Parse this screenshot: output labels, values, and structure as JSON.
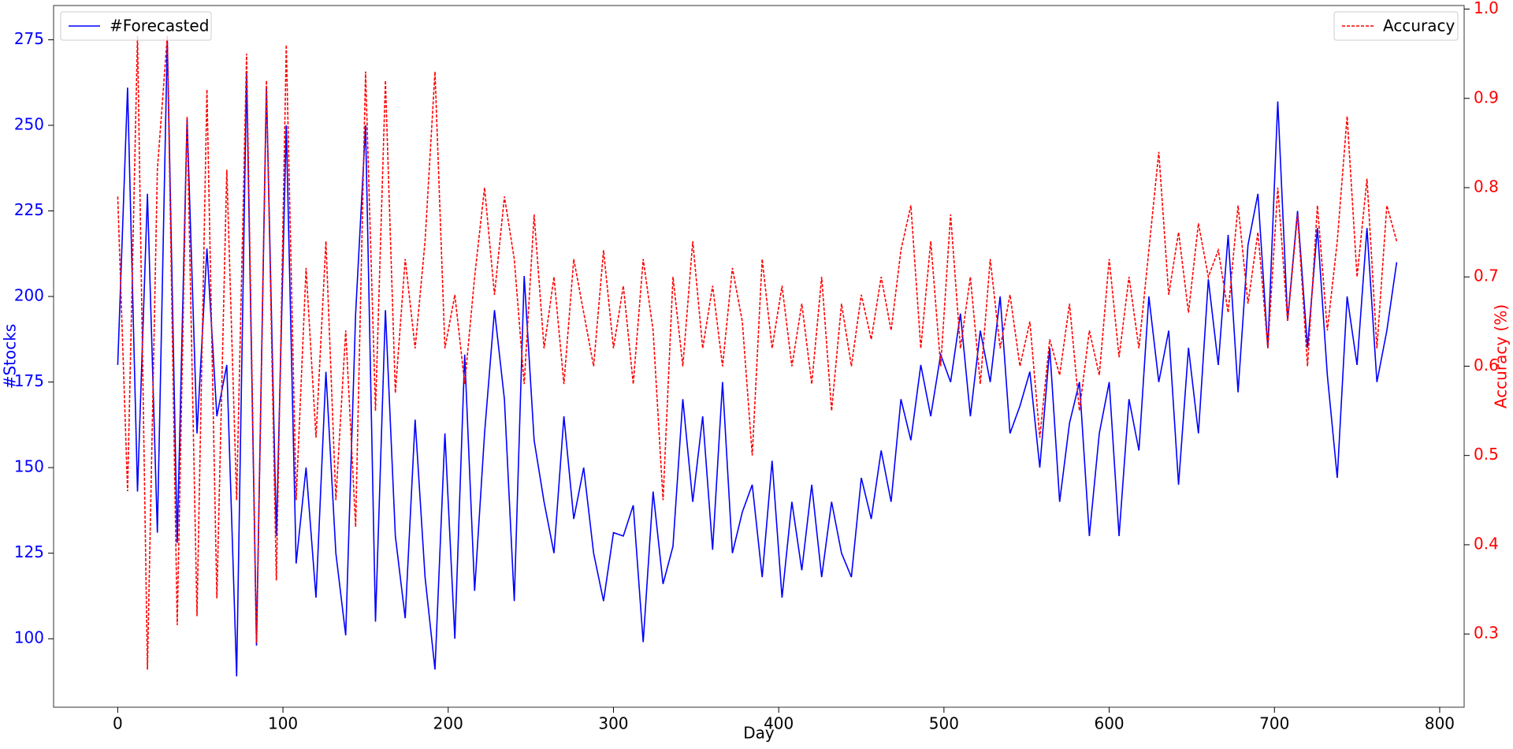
{
  "chart_data": {
    "type": "line",
    "xlabel": "Day",
    "ylabel": "#Stocks",
    "y2label": "Accuracy (%)",
    "x": [
      0,
      6,
      12,
      18,
      24,
      30,
      36,
      42,
      48,
      54,
      60,
      66,
      72,
      78,
      84,
      90,
      96,
      102,
      108,
      114,
      120,
      126,
      132,
      138,
      144,
      150,
      156,
      162,
      168,
      174,
      180,
      186,
      192,
      198,
      204,
      210,
      216,
      222,
      228,
      234,
      240,
      246,
      252,
      258,
      264,
      270,
      276,
      282,
      288,
      294,
      300,
      306,
      312,
      318,
      324,
      330,
      336,
      342,
      348,
      354,
      360,
      366,
      372,
      378,
      384,
      390,
      396,
      402,
      408,
      414,
      420,
      426,
      432,
      438,
      444,
      450,
      456,
      462,
      468,
      474,
      480,
      486,
      492,
      498,
      504,
      510,
      516,
      522,
      528,
      534,
      540,
      546,
      552,
      558,
      564,
      570,
      576,
      582,
      588,
      594,
      600,
      606,
      612,
      618,
      624,
      630,
      636,
      642,
      648,
      654,
      660,
      666,
      672,
      678,
      684,
      690,
      696,
      702,
      708,
      714,
      720,
      726,
      732,
      738,
      744,
      750,
      756,
      762,
      768,
      774
    ],
    "series": [
      {
        "name": "#Forecasted",
        "color": "#0000ff",
        "axis": "y",
        "dashed": false,
        "values": [
          180,
          261,
          143,
          230,
          131,
          275,
          128,
          252,
          160,
          214,
          165,
          180,
          89,
          265,
          98,
          261,
          130,
          250,
          122,
          150,
          112,
          178,
          125,
          101,
          195,
          250,
          105,
          196,
          130,
          106,
          164,
          118,
          91,
          160,
          100,
          183,
          114,
          160,
          196,
          170,
          111,
          206,
          158,
          140,
          125,
          165,
          135,
          150,
          125,
          111,
          131,
          130,
          139,
          99,
          143,
          116,
          127,
          170,
          140,
          165,
          126,
          175,
          125,
          137,
          145,
          118,
          152,
          112,
          140,
          120,
          145,
          118,
          140,
          125,
          118,
          147,
          135,
          155,
          140,
          170,
          158,
          180,
          165,
          183,
          175,
          195,
          165,
          190,
          175,
          200,
          160,
          168,
          178,
          150,
          185,
          140,
          163,
          175,
          130,
          160,
          175,
          130,
          170,
          155,
          200,
          175,
          190,
          145,
          185,
          160,
          205,
          180,
          218,
          172,
          215,
          230,
          185,
          257,
          193,
          225,
          185,
          220,
          177,
          147,
          200,
          180,
          220,
          175,
          190,
          210
        ]
      },
      {
        "name": "Accuracy",
        "color": "#ff0000",
        "axis": "y2",
        "dashed": true,
        "values": [
          0.79,
          0.46,
          0.97,
          0.26,
          0.82,
          0.97,
          0.31,
          0.88,
          0.32,
          0.91,
          0.34,
          0.82,
          0.45,
          0.95,
          0.29,
          0.92,
          0.36,
          0.96,
          0.45,
          0.71,
          0.52,
          0.74,
          0.45,
          0.64,
          0.42,
          0.93,
          0.55,
          0.92,
          0.57,
          0.72,
          0.62,
          0.74,
          0.93,
          0.62,
          0.68,
          0.58,
          0.7,
          0.8,
          0.68,
          0.79,
          0.72,
          0.58,
          0.77,
          0.62,
          0.7,
          0.58,
          0.72,
          0.66,
          0.6,
          0.73,
          0.62,
          0.69,
          0.58,
          0.72,
          0.64,
          0.45,
          0.7,
          0.6,
          0.74,
          0.62,
          0.69,
          0.6,
          0.71,
          0.65,
          0.5,
          0.72,
          0.62,
          0.69,
          0.6,
          0.67,
          0.58,
          0.7,
          0.55,
          0.67,
          0.6,
          0.68,
          0.63,
          0.7,
          0.64,
          0.73,
          0.78,
          0.62,
          0.74,
          0.6,
          0.77,
          0.62,
          0.7,
          0.58,
          0.72,
          0.62,
          0.68,
          0.6,
          0.65,
          0.52,
          0.63,
          0.59,
          0.67,
          0.55,
          0.64,
          0.59,
          0.72,
          0.61,
          0.7,
          0.62,
          0.73,
          0.84,
          0.68,
          0.75,
          0.66,
          0.76,
          0.7,
          0.73,
          0.66,
          0.78,
          0.67,
          0.75,
          0.62,
          0.8,
          0.65,
          0.77,
          0.6,
          0.78,
          0.64,
          0.74,
          0.88,
          0.7,
          0.81,
          0.62,
          0.78,
          0.74
        ]
      }
    ],
    "xlim": [
      -38.8,
      814.8
    ],
    "xticks": [
      0,
      100,
      200,
      300,
      400,
      500,
      600,
      700,
      800
    ],
    "ylim": [
      80,
      285
    ],
    "yticks": [
      100,
      125,
      150,
      175,
      200,
      225,
      250,
      275
    ],
    "y2lim": [
      0.218,
      1.004
    ],
    "y2ticks": [
      0.3,
      0.4,
      0.5,
      0.6,
      0.7,
      0.8,
      0.9,
      {
        "value": 1,
        "label": "1.0"
      }
    ],
    "legend": [
      "upper left",
      "upper right"
    ],
    "ycolor": "#0000ff",
    "y2color": "#ff0000"
  }
}
